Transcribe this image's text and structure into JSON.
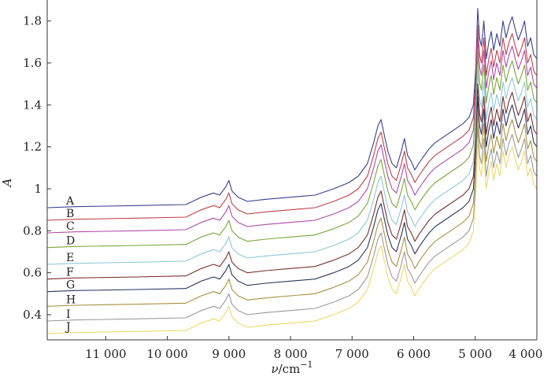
{
  "chart_data": {
    "type": "line",
    "xlabel_symbol": "ν",
    "xlabel_unit": "/cm",
    "xlabel_exp": "−1",
    "ylabel": "A",
    "xlim": [
      11950,
      4000
    ],
    "ylim": [
      0.28,
      1.9
    ],
    "x_ticks": [
      11000,
      10000,
      9000,
      8000,
      7000,
      6000,
      5000,
      4000
    ],
    "x_tick_labels": [
      "11 000",
      "10 000",
      "9 000",
      "8 000",
      "7 000",
      "6 000",
      "5 000",
      "4 000"
    ],
    "y_ticks": [
      0.4,
      0.6,
      0.8,
      1.0,
      1.2,
      1.4,
      1.6,
      1.8
    ],
    "y_tick_labels": [
      "0.4",
      "0.6",
      "0.8",
      "1",
      "1.2",
      "1.4",
      "1.6",
      "1.8"
    ],
    "grid": false,
    "legend": "inline labels at left",
    "x": [
      11950,
      11500,
      10500,
      9700,
      9450,
      9250,
      9150,
      9050,
      9000,
      8950,
      8850,
      8700,
      8400,
      8000,
      7600,
      7300,
      7050,
      6900,
      6750,
      6650,
      6580,
      6530,
      6480,
      6420,
      6350,
      6280,
      6200,
      6150,
      6100,
      6040,
      5980,
      5920,
      5850,
      5750,
      5650,
      5500,
      5350,
      5200,
      5100,
      5030,
      4990,
      4960,
      4930,
      4900,
      4860,
      4820,
      4780,
      4740,
      4700,
      4650,
      4600,
      4550,
      4500,
      4450,
      4400,
      4350,
      4300,
      4250,
      4200,
      4150,
      4100,
      4050,
      4000
    ],
    "series": [
      {
        "name": "A",
        "color": "#3a3f8c",
        "values": [
          0.91,
          0.915,
          0.92,
          0.925,
          0.96,
          0.98,
          0.97,
          1.01,
          1.04,
          0.99,
          0.96,
          0.94,
          0.95,
          0.96,
          0.97,
          1.0,
          1.03,
          1.06,
          1.12,
          1.22,
          1.3,
          1.33,
          1.26,
          1.18,
          1.12,
          1.1,
          1.18,
          1.24,
          1.16,
          1.13,
          1.09,
          1.12,
          1.15,
          1.19,
          1.22,
          1.25,
          1.28,
          1.31,
          1.34,
          1.4,
          1.58,
          1.86,
          1.72,
          1.68,
          1.8,
          1.62,
          1.7,
          1.75,
          1.66,
          1.74,
          1.68,
          1.8,
          1.72,
          1.78,
          1.82,
          1.76,
          1.71,
          1.75,
          1.8,
          1.68,
          1.72,
          1.64,
          1.62
        ]
      },
      {
        "name": "B",
        "color": "#c0404a",
        "values": [
          0.85,
          0.855,
          0.86,
          0.865,
          0.9,
          0.92,
          0.91,
          0.95,
          0.98,
          0.93,
          0.9,
          0.88,
          0.89,
          0.9,
          0.91,
          0.94,
          0.97,
          1.0,
          1.06,
          1.16,
          1.24,
          1.27,
          1.2,
          1.12,
          1.06,
          1.04,
          1.12,
          1.18,
          1.1,
          1.07,
          1.03,
          1.06,
          1.09,
          1.13,
          1.16,
          1.19,
          1.22,
          1.25,
          1.28,
          1.34,
          1.52,
          1.78,
          1.64,
          1.6,
          1.72,
          1.54,
          1.62,
          1.67,
          1.58,
          1.66,
          1.6,
          1.72,
          1.64,
          1.7,
          1.74,
          1.68,
          1.63,
          1.67,
          1.72,
          1.6,
          1.64,
          1.56,
          1.54
        ]
      },
      {
        "name": "C",
        "color": "#b04aa8",
        "values": [
          0.79,
          0.795,
          0.8,
          0.805,
          0.84,
          0.86,
          0.85,
          0.89,
          0.92,
          0.87,
          0.84,
          0.82,
          0.83,
          0.84,
          0.85,
          0.88,
          0.91,
          0.94,
          1.0,
          1.1,
          1.18,
          1.21,
          1.14,
          1.06,
          1.0,
          0.98,
          1.06,
          1.12,
          1.04,
          1.01,
          0.97,
          1.0,
          1.03,
          1.07,
          1.1,
          1.13,
          1.16,
          1.19,
          1.22,
          1.28,
          1.46,
          1.72,
          1.58,
          1.54,
          1.66,
          1.48,
          1.56,
          1.61,
          1.52,
          1.6,
          1.54,
          1.66,
          1.58,
          1.64,
          1.68,
          1.62,
          1.57,
          1.61,
          1.66,
          1.54,
          1.58,
          1.5,
          1.48
        ]
      },
      {
        "name": "D",
        "color": "#7aa83a",
        "values": [
          0.72,
          0.725,
          0.73,
          0.735,
          0.77,
          0.79,
          0.78,
          0.82,
          0.85,
          0.8,
          0.77,
          0.75,
          0.76,
          0.77,
          0.78,
          0.81,
          0.84,
          0.87,
          0.93,
          1.03,
          1.11,
          1.14,
          1.07,
          0.99,
          0.93,
          0.91,
          0.99,
          1.05,
          0.97,
          0.94,
          0.9,
          0.93,
          0.96,
          1.0,
          1.03,
          1.06,
          1.09,
          1.12,
          1.15,
          1.21,
          1.39,
          1.65,
          1.51,
          1.47,
          1.59,
          1.41,
          1.49,
          1.54,
          1.45,
          1.53,
          1.47,
          1.59,
          1.51,
          1.57,
          1.61,
          1.55,
          1.5,
          1.54,
          1.59,
          1.47,
          1.51,
          1.43,
          1.41
        ]
      },
      {
        "name": "E",
        "color": "#8ec8d8",
        "values": [
          0.64,
          0.645,
          0.65,
          0.655,
          0.69,
          0.71,
          0.7,
          0.74,
          0.77,
          0.72,
          0.69,
          0.67,
          0.68,
          0.69,
          0.7,
          0.73,
          0.76,
          0.79,
          0.85,
          0.95,
          1.03,
          1.06,
          0.99,
          0.91,
          0.85,
          0.83,
          0.91,
          0.97,
          0.89,
          0.86,
          0.82,
          0.85,
          0.88,
          0.92,
          0.95,
          0.98,
          1.01,
          1.04,
          1.07,
          1.13,
          1.31,
          1.57,
          1.43,
          1.39,
          1.51,
          1.33,
          1.41,
          1.46,
          1.37,
          1.45,
          1.39,
          1.51,
          1.43,
          1.49,
          1.53,
          1.47,
          1.42,
          1.46,
          1.51,
          1.39,
          1.43,
          1.35,
          1.33
        ]
      },
      {
        "name": "F",
        "color": "#7a3030",
        "values": [
          0.57,
          0.575,
          0.58,
          0.585,
          0.62,
          0.64,
          0.63,
          0.67,
          0.7,
          0.65,
          0.62,
          0.6,
          0.61,
          0.62,
          0.63,
          0.66,
          0.69,
          0.72,
          0.78,
          0.88,
          0.96,
          0.99,
          0.92,
          0.84,
          0.78,
          0.76,
          0.84,
          0.9,
          0.82,
          0.79,
          0.75,
          0.78,
          0.81,
          0.85,
          0.88,
          0.91,
          0.94,
          0.97,
          1.0,
          1.06,
          1.24,
          1.5,
          1.36,
          1.32,
          1.44,
          1.26,
          1.34,
          1.39,
          1.3,
          1.38,
          1.32,
          1.44,
          1.36,
          1.42,
          1.46,
          1.4,
          1.35,
          1.39,
          1.44,
          1.32,
          1.36,
          1.28,
          1.26
        ]
      },
      {
        "name": "G",
        "color": "#2e3560",
        "values": [
          0.51,
          0.515,
          0.52,
          0.525,
          0.56,
          0.58,
          0.57,
          0.61,
          0.64,
          0.59,
          0.56,
          0.54,
          0.55,
          0.56,
          0.57,
          0.6,
          0.63,
          0.66,
          0.72,
          0.82,
          0.9,
          0.93,
          0.86,
          0.78,
          0.72,
          0.7,
          0.78,
          0.84,
          0.76,
          0.73,
          0.69,
          0.72,
          0.75,
          0.79,
          0.82,
          0.85,
          0.88,
          0.91,
          0.94,
          1.0,
          1.18,
          1.44,
          1.3,
          1.26,
          1.38,
          1.2,
          1.28,
          1.33,
          1.24,
          1.32,
          1.26,
          1.38,
          1.3,
          1.36,
          1.4,
          1.34,
          1.29,
          1.33,
          1.38,
          1.26,
          1.3,
          1.22,
          1.2
        ]
      },
      {
        "name": "H",
        "color": "#a89040",
        "values": [
          0.44,
          0.445,
          0.45,
          0.455,
          0.49,
          0.51,
          0.5,
          0.54,
          0.57,
          0.52,
          0.49,
          0.47,
          0.48,
          0.49,
          0.5,
          0.53,
          0.56,
          0.59,
          0.65,
          0.75,
          0.83,
          0.86,
          0.79,
          0.71,
          0.65,
          0.63,
          0.71,
          0.77,
          0.69,
          0.66,
          0.62,
          0.65,
          0.68,
          0.72,
          0.75,
          0.78,
          0.81,
          0.84,
          0.87,
          0.93,
          1.11,
          1.37,
          1.23,
          1.19,
          1.31,
          1.13,
          1.21,
          1.26,
          1.17,
          1.25,
          1.19,
          1.31,
          1.23,
          1.29,
          1.33,
          1.27,
          1.22,
          1.26,
          1.31,
          1.19,
          1.23,
          1.15,
          1.13
        ]
      },
      {
        "name": "I",
        "color": "#9a9a9a",
        "values": [
          0.37,
          0.375,
          0.38,
          0.385,
          0.42,
          0.44,
          0.43,
          0.47,
          0.5,
          0.45,
          0.42,
          0.4,
          0.41,
          0.42,
          0.43,
          0.46,
          0.49,
          0.52,
          0.58,
          0.68,
          0.76,
          0.79,
          0.72,
          0.64,
          0.58,
          0.56,
          0.64,
          0.7,
          0.62,
          0.59,
          0.55,
          0.58,
          0.61,
          0.65,
          0.68,
          0.71,
          0.74,
          0.77,
          0.8,
          0.86,
          1.04,
          1.3,
          1.16,
          1.12,
          1.24,
          1.06,
          1.14,
          1.19,
          1.1,
          1.18,
          1.12,
          1.24,
          1.16,
          1.22,
          1.26,
          1.2,
          1.15,
          1.19,
          1.24,
          1.12,
          1.16,
          1.08,
          1.06
        ]
      },
      {
        "name": "J",
        "color": "#ecd86a",
        "values": [
          0.31,
          0.315,
          0.32,
          0.325,
          0.36,
          0.38,
          0.37,
          0.41,
          0.44,
          0.39,
          0.36,
          0.34,
          0.35,
          0.36,
          0.37,
          0.4,
          0.43,
          0.46,
          0.52,
          0.62,
          0.7,
          0.73,
          0.66,
          0.58,
          0.52,
          0.5,
          0.58,
          0.64,
          0.56,
          0.53,
          0.49,
          0.52,
          0.55,
          0.59,
          0.62,
          0.65,
          0.68,
          0.71,
          0.74,
          0.8,
          0.98,
          1.24,
          1.1,
          1.06,
          1.18,
          1.0,
          1.08,
          1.13,
          1.04,
          1.12,
          1.06,
          1.18,
          1.1,
          1.16,
          1.2,
          1.14,
          1.09,
          1.13,
          1.18,
          1.06,
          1.1,
          1.02,
          1.0
        ]
      }
    ]
  }
}
